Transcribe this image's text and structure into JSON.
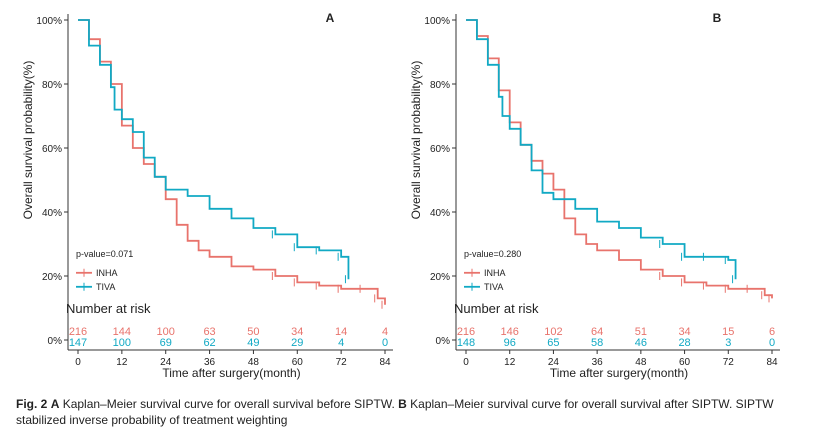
{
  "figure_label": "Fig. 2",
  "caption": {
    "label_a": "A",
    "text_a": " Kaplan–Meier survival curve for overall survival before SIPTW. ",
    "label_b": "B",
    "text_b": " Kaplan–Meier survival curve for overall survival after SIPTW. SIPTW stabilized inverse probability of treatment weighting"
  },
  "colors": {
    "INHA": "#e8736c",
    "TIVA": "#11a9c4",
    "axis": "#333333"
  },
  "chart_data": [
    {
      "type": "line",
      "panel_label": "A",
      "xlabel": "Time after surgery(month)",
      "ylabel": "Overall survival probability(%)",
      "xticks": [
        0,
        12,
        24,
        36,
        48,
        60,
        72,
        84
      ],
      "yticks": [
        "0%",
        "20%",
        "40%",
        "60%",
        "80%",
        "100%"
      ],
      "xlim": [
        0,
        84
      ],
      "ylim": [
        0,
        100
      ],
      "pvalue": "p-value=0.071",
      "legend": [
        "INHA",
        "TIVA"
      ],
      "risk_title": "Number at risk",
      "risk_times": [
        0,
        12,
        24,
        36,
        48,
        60,
        72,
        84
      ],
      "risk": {
        "INHA": [
          216,
          144,
          100,
          63,
          50,
          34,
          14,
          4
        ],
        "TIVA": [
          147,
          100,
          69,
          62,
          49,
          29,
          4,
          0
        ]
      },
      "series": [
        {
          "name": "INHA",
          "x": [
            0,
            3,
            6,
            9,
            12,
            15,
            18,
            21,
            24,
            27,
            30,
            33,
            36,
            42,
            48,
            54,
            60,
            66,
            72,
            78,
            82,
            84
          ],
          "y": [
            100,
            94,
            87,
            80,
            67,
            60,
            55,
            51,
            44,
            36,
            31,
            28,
            26,
            23,
            22,
            20,
            18,
            17,
            16,
            16,
            13,
            11
          ]
        },
        {
          "name": "TIVA",
          "x": [
            0,
            3,
            6,
            9,
            10,
            12,
            15,
            18,
            21,
            24,
            30,
            36,
            42,
            48,
            54,
            60,
            66,
            72,
            74
          ],
          "y": [
            100,
            92,
            86,
            79,
            72,
            69,
            65,
            57,
            51,
            47,
            45,
            41,
            38,
            35,
            33,
            29,
            28,
            26,
            19
          ]
        }
      ]
    },
    {
      "type": "line",
      "panel_label": "B",
      "xlabel": "Time after surgery(month)",
      "ylabel": "Overall survival probability(%)",
      "xticks": [
        0,
        12,
        24,
        36,
        48,
        60,
        72,
        84
      ],
      "yticks": [
        "0%",
        "20%",
        "40%",
        "60%",
        "80%",
        "100%"
      ],
      "xlim": [
        0,
        84
      ],
      "ylim": [
        0,
        100
      ],
      "pvalue": "p-value=0.280",
      "legend": [
        "INHA",
        "TIVA"
      ],
      "risk_title": "Number at risk",
      "risk_times": [
        0,
        12,
        24,
        36,
        48,
        60,
        72,
        84
      ],
      "risk": {
        "INHA": [
          216,
          146,
          102,
          64,
          51,
          34,
          15,
          6
        ],
        "TIVA": [
          148,
          96,
          65,
          58,
          46,
          28,
          3,
          0
        ]
      },
      "series": [
        {
          "name": "INHA",
          "x": [
            0,
            3,
            6,
            9,
            12,
            15,
            18,
            21,
            24,
            27,
            30,
            33,
            36,
            42,
            48,
            54,
            60,
            66,
            72,
            78,
            82,
            84
          ],
          "y": [
            100,
            95,
            88,
            78,
            68,
            61,
            56,
            52,
            47,
            38,
            33,
            30,
            28,
            25,
            22,
            20,
            18,
            17,
            16,
            16,
            14,
            13
          ]
        },
        {
          "name": "TIVA",
          "x": [
            0,
            3,
            6,
            9,
            10,
            12,
            15,
            18,
            21,
            24,
            30,
            36,
            42,
            48,
            54,
            60,
            66,
            72,
            74
          ],
          "y": [
            100,
            94,
            86,
            76,
            70,
            66,
            61,
            53,
            46,
            44,
            41,
            37,
            35,
            32,
            30,
            26,
            26,
            25,
            19
          ]
        }
      ]
    }
  ]
}
